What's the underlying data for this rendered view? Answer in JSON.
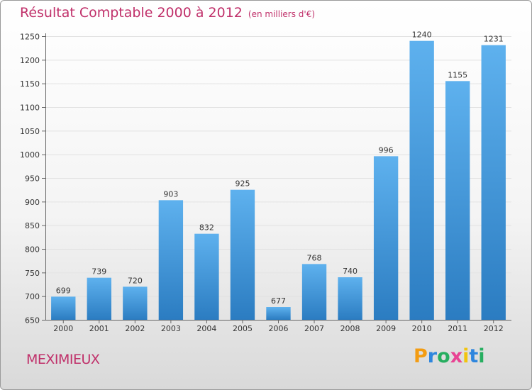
{
  "chart_data": {
    "type": "bar",
    "title": "Résultat Comptable 2000 à 2012",
    "unit_note": "(en milliers d'€)",
    "categories": [
      "2000",
      "2001",
      "2002",
      "2003",
      "2004",
      "2005",
      "2006",
      "2007",
      "2008",
      "2009",
      "2010",
      "2011",
      "2012"
    ],
    "values": [
      699,
      739,
      720,
      903,
      832,
      925,
      677,
      768,
      740,
      996,
      1240,
      1155,
      1231
    ],
    "ylim": [
      650,
      1250
    ],
    "yticks": [
      650,
      700,
      750,
      800,
      850,
      900,
      950,
      1000,
      1050,
      1100,
      1150,
      1200,
      1250
    ],
    "xlabel": "",
    "ylabel": "",
    "grid": true,
    "bar_color": "#3a8fd6"
  },
  "commune": "MEXIMIEUX",
  "brand": {
    "letters": [
      "P",
      "r",
      "o",
      "x",
      "i",
      "t",
      "i"
    ],
    "colors": [
      "#f39c12",
      "#2e86de",
      "#27ae60",
      "#e84393",
      "#f1c40f",
      "#2e86de",
      "#27ae60"
    ]
  }
}
